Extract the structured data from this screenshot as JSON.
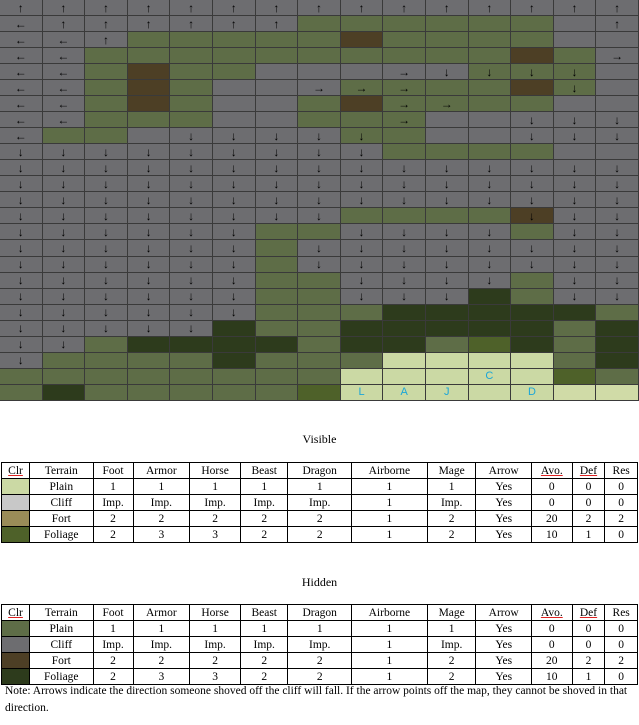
{
  "terrain_colors": {
    "G": "#5e6d47",
    "g": "#6a7355",
    "C": "#6d6d70",
    "F": "#4d3f25",
    "D": "#2d3b1c",
    "M": "#4e6129",
    "P": "#cbd9a4",
    "R": "#d0dba7"
  },
  "map": {
    "columns": 15,
    "terrain": [
      "CCCCCCCCCCCCCCC",
      "CCCCCCCGGGGGGCC",
      "CCCGGGGGFGGGGCC",
      "CCGGGGGGGGGGFGC",
      "CCGFGGCCCCCGGGC",
      "CCGFGCCCGGGGFGC",
      "CCGFGCCGFGGGGCC",
      "CCGGGCCGGGCCCCC",
      "CGGCCCCCGGCCCCC",
      "CCCCCCCCCGGGGCC",
      "CCCCCCCCCCCCCCC",
      "CCCCCCCCCCCCCCC",
      "CCCCCCCCCCCCCCC",
      "CCCCCCCCGGGGFCC",
      "CCCCCCGGCCCCGCC",
      "CCCCCCGCCCCCCCC",
      "CCCCCCGCCCCCCCC",
      "CCCCCCGGCCCCGCC",
      "CCCCCCGGCCCDGCC",
      "CCCCCCGGGDDDDDG",
      "CCCCCDGGDDDDDGD",
      "CCGDDDDGDDGMDGD",
      "CGGGGDGGGPPPPGD",
      "GGGGGGGGPPPPPMG",
      "GDGGGGGMPPPPPRR",
      "GGGGGGRRPPPPPRR"
    ],
    "arrows": [
      "↑↑↑↑↑↑↑↑↑↑↑↑↑↑↑",
      "←↑↑↑↑↑↑       ↑↑",
      "←←↑            →→",
      "←←            →",
      "←←       →↓↓↓↓   →",
      "←←     →→→   ↓   →",
      "←←       →→     ↓↓",
      "←←       →  ↓↓↓↓↓",
      "←   ↓↓↓↓↓   ↓↓↓↓↓",
      "↓↓↓↓↓↓↓↓↓       ↓↓",
      "↓↓↓↓↓↓↓↓↓↓↓↓↓↓↓",
      "↓↓↓↓↓↓↓↓↓↓↓↓↓↓↓",
      "↓↓↓↓↓↓↓↓↓↓↓↓↓↓↓",
      "↓↓↓↓↓↓↓↓    ↓↓↓",
      "↓↓↓↓↓↓  ↓↓↓↓ ↓↓",
      "↓↓↓↓↓↓ ↓↓↓↓↓↓↓↓",
      "↓↓↓↓↓↓ ↓↓↓↓↓↓↓↓",
      "↓↓↓↓↓↓  ↓↓↓↓ ↓↓",
      "↓↓↓↓↓↓  ↓↓↓  ↓↓",
      "↓↓↓↓↓↓",
      "↓↓↓↓↓",
      "↓↓",
      "↓"
    ],
    "labels": [
      {
        "row": 23,
        "col": 11,
        "text": "C"
      },
      {
        "row": 24,
        "col": 8,
        "text": "L"
      },
      {
        "row": 24,
        "col": 9,
        "text": "A"
      },
      {
        "row": 24,
        "col": 10,
        "text": "J"
      },
      {
        "row": 24,
        "col": 12,
        "text": "D"
      }
    ]
  },
  "visible": {
    "title": "Visible",
    "headers": [
      "Clr",
      "Terrain",
      "Foot",
      "Armor",
      "Horse",
      "Beast",
      "Dragon",
      "Airborne",
      "Mage",
      "Arrow",
      "Avo.",
      "Def",
      "Res"
    ],
    "rows": [
      {
        "color": "#cbd9a4",
        "cells": [
          "Plain",
          "1",
          "1",
          "1",
          "1",
          "1",
          "1",
          "1",
          "Yes",
          "0",
          "0",
          "0"
        ]
      },
      {
        "color": "#c8c8c8",
        "cells": [
          "Cliff",
          "Imp.",
          "Imp.",
          "Imp.",
          "Imp.",
          "Imp.",
          "1",
          "Imp.",
          "Yes",
          "0",
          "0",
          "0"
        ]
      },
      {
        "color": "#9a8c58",
        "cells": [
          "Fort",
          "2",
          "2",
          "2",
          "2",
          "2",
          "1",
          "2",
          "Yes",
          "20",
          "2",
          "2"
        ]
      },
      {
        "color": "#4e6129",
        "cells": [
          "Foliage",
          "2",
          "3",
          "3",
          "2",
          "2",
          "1",
          "2",
          "Yes",
          "10",
          "1",
          "0"
        ]
      }
    ]
  },
  "hidden": {
    "title": "Hidden",
    "headers": [
      "Clr",
      "Terrain",
      "Foot",
      "Armor",
      "Horse",
      "Beast",
      "Dragon",
      "Airborne",
      "Mage",
      "Arrow",
      "Avo.",
      "Def",
      "Res"
    ],
    "rows": [
      {
        "color": "#5e6d47",
        "cells": [
          "Plain",
          "1",
          "1",
          "1",
          "1",
          "1",
          "1",
          "1",
          "Yes",
          "0",
          "0",
          "0"
        ]
      },
      {
        "color": "#6d6d70",
        "cells": [
          "Cliff",
          "Imp.",
          "Imp.",
          "Imp.",
          "Imp.",
          "Imp.",
          "1",
          "Imp.",
          "Yes",
          "0",
          "0",
          "0"
        ]
      },
      {
        "color": "#4d3f25",
        "cells": [
          "Fort",
          "2",
          "2",
          "2",
          "2",
          "2",
          "1",
          "2",
          "Yes",
          "20",
          "2",
          "2"
        ]
      },
      {
        "color": "#2d3b1c",
        "cells": [
          "Foliage",
          "2",
          "3",
          "3",
          "2",
          "2",
          "1",
          "2",
          "Yes",
          "10",
          "1",
          "0"
        ]
      }
    ]
  },
  "note": "Note: Arrows indicate the direction someone shoved off the cliff will fall.  If the arrow points off the map, they cannot be shoved in that direction."
}
